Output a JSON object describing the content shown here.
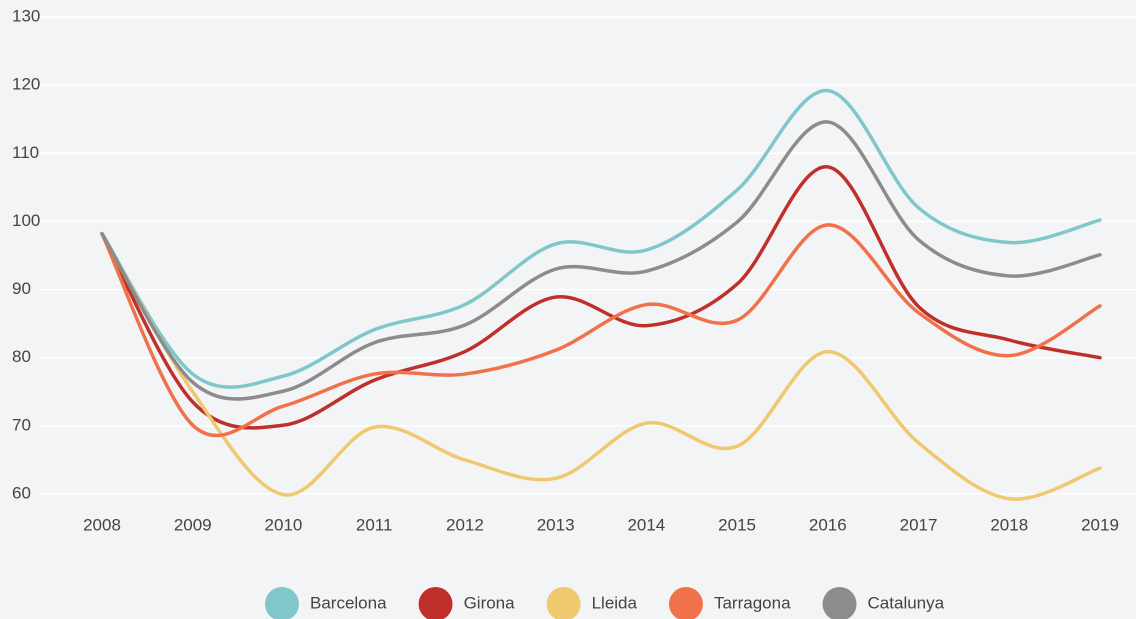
{
  "chart_data": {
    "type": "line",
    "categories": [
      "2008",
      "2009",
      "2010",
      "2011",
      "2012",
      "2013",
      "2014",
      "2015",
      "2016",
      "2017",
      "2018",
      "2019"
    ],
    "series": [
      {
        "name": "Barcelona",
        "color": "#80c7c9",
        "values": [
          98.2,
          77.6,
          77.3,
          84.1,
          87.8,
          96.7,
          95.8,
          104.6,
          119.2,
          102,
          96.9,
          100.2
        ]
      },
      {
        "name": "Girona",
        "color": "#c0302a",
        "values": [
          98.2,
          73.5,
          70.1,
          76.7,
          80.9,
          88.9,
          84.7,
          90.8,
          108,
          87.5,
          82.6,
          80
        ]
      },
      {
        "name": "Lleida",
        "color": "#f0c96e",
        "values": [
          98.2,
          75,
          59.9,
          69.8,
          65,
          62.3,
          70.4,
          67,
          80.9,
          67.5,
          59.3,
          63.8
        ]
      },
      {
        "name": "Tarragona",
        "color": "#f0714a",
        "values": [
          98.2,
          70.1,
          72.9,
          77.6,
          77.6,
          81.1,
          87.8,
          85.5,
          99.5,
          86.6,
          80.3,
          87.6
        ]
      },
      {
        "name": "Catalunya",
        "color": "#8c8c8c",
        "values": [
          98.2,
          76.4,
          75.1,
          82.2,
          84.8,
          93,
          92.7,
          99.9,
          114.6,
          97.3,
          92,
          95.1
        ]
      }
    ],
    "ylim": [
      60,
      130
    ],
    "yticks": [
      60,
      70,
      80,
      90,
      100,
      110,
      120,
      130
    ],
    "grid": true,
    "legend": "bottom"
  }
}
